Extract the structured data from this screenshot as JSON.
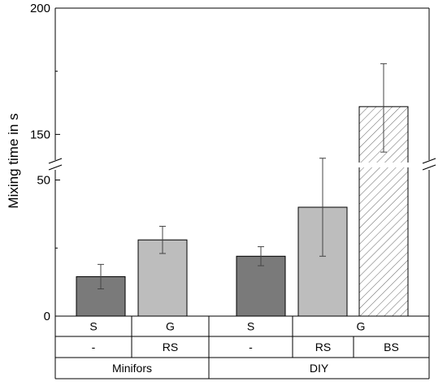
{
  "chart_data": {
    "type": "bar",
    "ylabel": "Mixing time in s",
    "y_axis": {
      "break": true,
      "lower_segment": {
        "range": [
          0,
          60
        ],
        "ticks": [
          0,
          50
        ]
      },
      "upper_segment": {
        "range": [
          135,
          200
        ],
        "ticks": [
          150,
          200
        ]
      }
    },
    "bars": [
      {
        "row1": "S",
        "row2": "-",
        "group": "Minifors",
        "value": 14.5,
        "error": [
          10,
          19
        ],
        "color": "#7a7a7a",
        "hatch": false
      },
      {
        "row1": "G",
        "row2": "RS",
        "group": "Minifors",
        "value": 28,
        "error": [
          23,
          33
        ],
        "color": "#bdbdbd",
        "hatch": false
      },
      {
        "row1": "S",
        "row2": "-",
        "group": "DIY",
        "value": 22,
        "error": [
          18.5,
          25.5
        ],
        "color": "#7a7a7a",
        "hatch": false
      },
      {
        "row1": "G",
        "row2": "RS",
        "group": "DIY",
        "value": 40,
        "error": [
          22,
          58
        ],
        "color": "#bdbdbd",
        "hatch": false
      },
      {
        "row1": "G",
        "row2": "BS",
        "group": "DIY",
        "value": 161,
        "error": [
          143,
          178
        ],
        "color": "#ffffff",
        "hatch": true
      }
    ],
    "table": {
      "row1": [
        "S",
        "G",
        "S",
        "G"
      ],
      "row2": [
        "-",
        "RS",
        "-",
        "RS",
        "BS"
      ],
      "row3": [
        "Minifors",
        "DIY"
      ]
    },
    "grid": false,
    "legend": "none"
  }
}
